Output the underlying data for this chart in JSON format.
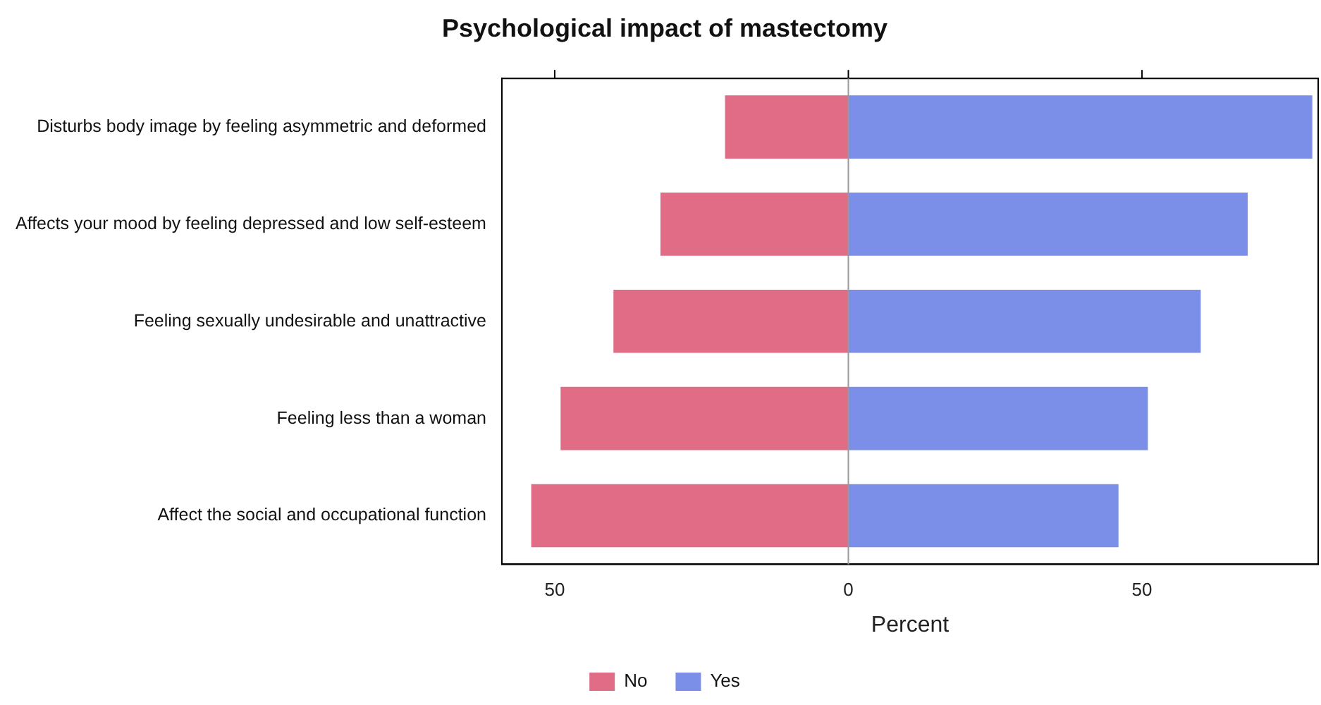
{
  "chart_data": {
    "type": "bar",
    "title": "Psychological impact of mastectomy",
    "xlabel": "Percent",
    "orientation": "horizontal",
    "stacked": true,
    "categories": [
      "Disturbs body image by feeling asymmetric and deformed",
      "Affects your mood by feeling depressed and low self-esteem",
      "Feeling sexually undesirable and unattractive",
      "Feeling less than a woman",
      "Affect the social and occupational function"
    ],
    "series": [
      {
        "name": "No",
        "color": "#e06c85",
        "values": [
          -21,
          -32,
          -40,
          -49,
          -54
        ]
      },
      {
        "name": "Yes",
        "color": "#7b8ee8",
        "values": [
          79,
          68,
          60,
          51,
          46
        ]
      }
    ],
    "xlim": [
      -59,
      80
    ],
    "xticks": [
      {
        "value": -50,
        "label": "50"
      },
      0,
      50
    ],
    "ref_lines": [
      {
        "axis": "x",
        "value": 0,
        "color": "#999999"
      }
    ],
    "grid": false,
    "legend": "bottom"
  }
}
